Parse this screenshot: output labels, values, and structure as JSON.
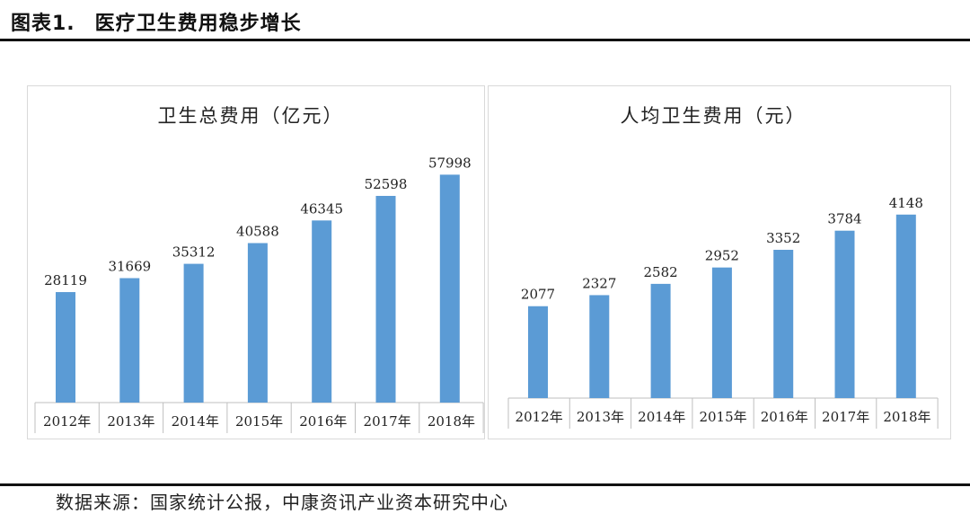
{
  "header": {
    "label": "图表1.",
    "title": "医疗卫生费用稳步增长"
  },
  "source": "数据来源：国家统计公报，中康资讯产业资本研究中心",
  "colors": {
    "bar": "#5b9bd5",
    "axis": "#bfbfbf",
    "panel_border": "#d9d9d9"
  },
  "chart_data": [
    {
      "type": "bar",
      "title": "卫生总费用（亿元）",
      "categories": [
        "2012年",
        "2013年",
        "2014年",
        "2015年",
        "2016年",
        "2017年",
        "2018年"
      ],
      "values": [
        28119,
        31669,
        35312,
        40588,
        46345,
        52598,
        57998
      ],
      "ylim": [
        0,
        59000
      ],
      "grid": false,
      "legend": "none"
    },
    {
      "type": "bar",
      "title": "人均卫生费用（元）",
      "categories": [
        "2012年",
        "2013年",
        "2014年",
        "2015年",
        "2016年",
        "2017年",
        "2018年"
      ],
      "values": [
        2077,
        2327,
        2582,
        2952,
        3352,
        3784,
        4148
      ],
      "ylim": [
        0,
        5200
      ],
      "grid": false,
      "legend": "none"
    }
  ]
}
